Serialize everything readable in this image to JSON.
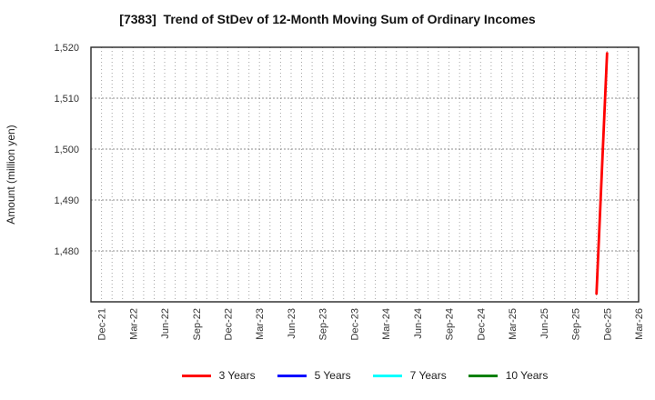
{
  "figure": {
    "background": "#ffffff",
    "border_color": "#262626"
  },
  "chart_data": {
    "type": "line",
    "title": "[7383]  Trend of StDev of 12-Month Moving Sum of Ordinary Incomes",
    "ylabel": "Amount (million yen)",
    "xlabel": "",
    "ylim": [
      1470,
      1520
    ],
    "y_ticks": [
      {
        "value": 1520,
        "label": "1,520"
      },
      {
        "value": 1510,
        "label": "1,510"
      },
      {
        "value": 1500,
        "label": "1,500"
      },
      {
        "value": 1490,
        "label": "1,490"
      },
      {
        "value": 1480,
        "label": "1,480"
      }
    ],
    "x_axis": {
      "start_month": "Nov-21",
      "end_month": "Mar-26",
      "months_total": 52,
      "tick_first_index": 1,
      "tick_step": 3,
      "tick_labels": [
        "Dec-21",
        "Mar-22",
        "Jun-22",
        "Sep-22",
        "Dec-22",
        "Mar-23",
        "Jun-23",
        "Sep-23",
        "Dec-23",
        "Mar-24",
        "Jun-24",
        "Sep-24",
        "Dec-24",
        "Mar-25",
        "Jun-25",
        "Sep-25",
        "Dec-25",
        "Mar-26"
      ]
    },
    "grid": {
      "on": true,
      "vertical": "monthly dotted",
      "horizontal": "dotted at each y tick",
      "vertical_color": "#a6a6a6",
      "horizontal_color": "#8c8c8c"
    },
    "legend_position": "bottom center",
    "series": [
      {
        "name": "3 Years",
        "color": "#ff0000",
        "points": [
          {
            "month": "Nov-25",
            "month_index": 48,
            "value": 1471.6
          },
          {
            "month": "Dec-25",
            "month_index": 49,
            "value": 1518.8
          }
        ]
      },
      {
        "name": "5 Years",
        "color": "#0000ff",
        "points": []
      },
      {
        "name": "7 Years",
        "color": "#00ffff",
        "points": []
      },
      {
        "name": "10 Years",
        "color": "#008000",
        "points": []
      }
    ]
  }
}
